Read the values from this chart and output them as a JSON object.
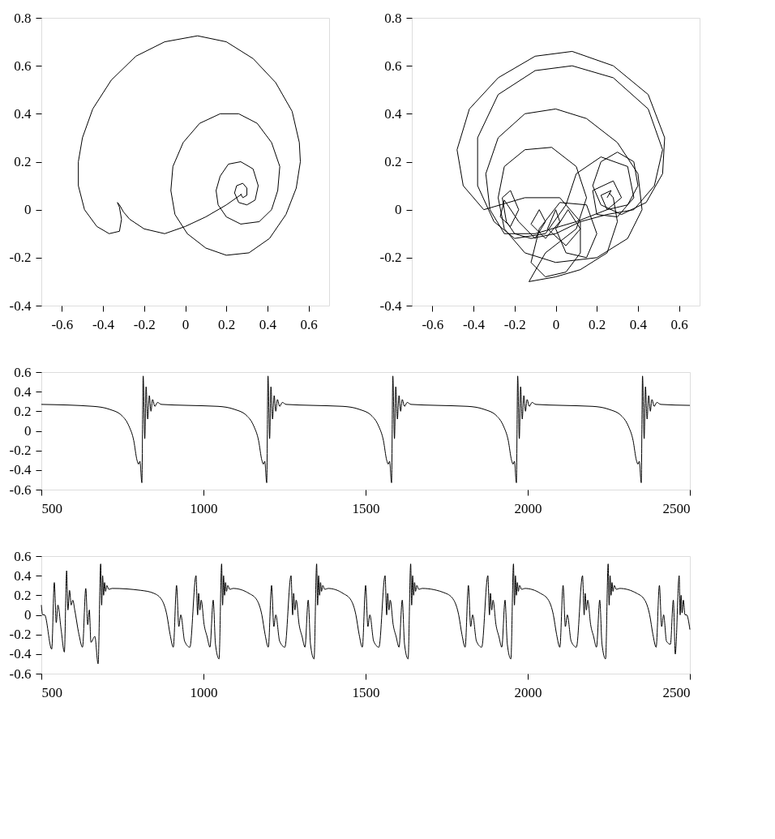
{
  "chart_data": [
    {
      "type": "line",
      "xlim": [
        -0.7,
        0.7
      ],
      "ylim": [
        -0.4,
        0.8
      ],
      "xticks": [
        -0.6,
        -0.4,
        -0.2,
        0,
        0.2,
        0.4,
        0.6
      ],
      "yticks": [
        -0.4,
        -0.2,
        0,
        0.2,
        0.4,
        0.6,
        0.8
      ],
      "series": [
        {
          "color": "#000000",
          "x": [
            0.275,
            0.2,
            0.1,
            0.0,
            -0.1,
            -0.2,
            -0.27,
            -0.3,
            -0.32,
            -0.33,
            -0.32,
            -0.31,
            -0.32,
            -0.37,
            -0.43,
            -0.49,
            -0.52,
            -0.52,
            -0.5,
            -0.45,
            -0.36,
            -0.24,
            -0.1,
            0.06,
            0.2,
            0.33,
            0.44,
            0.52,
            0.555,
            0.56,
            0.54,
            0.49,
            0.41,
            0.31,
            0.2,
            0.1,
            0.01,
            -0.05,
            -0.07,
            -0.06,
            -0.01,
            0.07,
            0.17,
            0.26,
            0.35,
            0.42,
            0.46,
            0.45,
            0.42,
            0.36,
            0.27,
            0.2,
            0.16,
            0.15,
            0.17,
            0.21,
            0.27,
            0.33,
            0.355,
            0.34,
            0.3,
            0.26,
            0.24,
            0.25,
            0.28,
            0.3,
            0.3,
            0.28,
            0.27
          ],
          "values": [
            0.065,
            0.02,
            -0.03,
            -0.07,
            -0.1,
            -0.08,
            -0.04,
            -0.01,
            0.02,
            0.03,
            0.01,
            -0.04,
            -0.09,
            -0.1,
            -0.07,
            0.0,
            0.1,
            0.2,
            0.3,
            0.42,
            0.54,
            0.64,
            0.7,
            0.725,
            0.7,
            0.63,
            0.53,
            0.41,
            0.28,
            0.2,
            0.09,
            -0.02,
            -0.12,
            -0.18,
            -0.19,
            -0.16,
            -0.1,
            -0.02,
            0.08,
            0.18,
            0.28,
            0.36,
            0.4,
            0.4,
            0.36,
            0.28,
            0.18,
            0.08,
            0.0,
            -0.05,
            -0.06,
            -0.03,
            0.02,
            0.08,
            0.14,
            0.19,
            0.2,
            0.17,
            0.1,
            0.04,
            0.02,
            0.03,
            0.07,
            0.1,
            0.11,
            0.09,
            0.06,
            0.05,
            0.065
          ]
        }
      ]
    },
    {
      "type": "line",
      "xlim": [
        -0.7,
        0.7
      ],
      "ylim": [
        -0.4,
        0.8
      ],
      "xticks": [
        -0.6,
        -0.4,
        -0.2,
        0,
        0.2,
        0.4,
        0.6
      ],
      "yticks": [
        -0.4,
        -0.2,
        0,
        0.2,
        0.4,
        0.6,
        0.8
      ],
      "series": [
        {
          "color": "#000000",
          "x": [
            0.25,
            0.27,
            0.22,
            0.25,
            0.32,
            0.28,
            0.18,
            0.2,
            0.3,
            0.38,
            0.35,
            0.22,
            0.1,
            0.05,
            -0.05,
            -0.2,
            -0.3,
            -0.38,
            -0.38,
            -0.28,
            -0.1,
            0.08,
            0.28,
            0.45,
            0.52,
            0.48,
            0.38,
            0.25,
            0.12,
            0.0,
            -0.12,
            -0.2,
            -0.24,
            -0.26,
            -0.22,
            -0.18,
            -0.22,
            -0.27,
            -0.25,
            -0.18,
            -0.1,
            -0.05,
            -0.08,
            -0.12,
            -0.05,
            0.02,
            0.0,
            -0.04,
            0.05,
            0.12,
            0.06,
            0.0,
            0.05,
            0.15,
            0.2,
            0.15,
            0.02,
            -0.08,
            -0.12,
            -0.05,
            0.05,
            0.12,
            0.12,
            0.02,
            -0.15,
            -0.35,
            -0.45,
            -0.48,
            -0.42,
            -0.28,
            -0.1,
            0.08,
            0.28,
            0.45,
            0.53,
            0.52,
            0.44,
            0.32,
            0.22,
            0.18,
            0.22,
            0.3,
            0.38,
            0.4,
            0.35,
            0.25,
            0.1,
            -0.1,
            -0.25,
            -0.32,
            -0.34,
            -0.28,
            -0.15,
            0.0,
            0.15,
            0.3,
            0.4,
            0.42,
            0.35,
            0.2,
            0.0,
            -0.15,
            -0.25,
            -0.28,
            -0.25,
            -0.15,
            -0.02,
            0.1,
            0.15,
            0.1,
            -0.05,
            -0.13,
            0.0,
            0.12,
            0.25,
            0.3,
            0.28,
            0.26
          ],
          "values": [
            0.05,
            0.08,
            0.06,
            0.0,
            0.05,
            0.12,
            0.08,
            -0.02,
            -0.03,
            0.05,
            0.18,
            0.22,
            0.15,
            0.02,
            -0.1,
            -0.12,
            -0.05,
            0.1,
            0.3,
            0.48,
            0.58,
            0.6,
            0.55,
            0.42,
            0.25,
            0.1,
            0.0,
            -0.02,
            -0.05,
            -0.1,
            -0.12,
            -0.1,
            -0.05,
            0.05,
            0.08,
            0.0,
            -0.07,
            -0.03,
            0.04,
            -0.05,
            -0.12,
            -0.05,
            0.0,
            -0.06,
            -0.12,
            -0.05,
            0.0,
            -0.08,
            -0.15,
            -0.08,
            0.0,
            -0.08,
            -0.18,
            -0.2,
            -0.1,
            0.02,
            0.03,
            -0.08,
            -0.22,
            -0.28,
            -0.26,
            -0.18,
            -0.05,
            0.05,
            0.05,
            0.0,
            0.1,
            0.25,
            0.42,
            0.55,
            0.64,
            0.66,
            0.6,
            0.48,
            0.3,
            0.15,
            0.03,
            -0.02,
            0.02,
            0.1,
            0.2,
            0.24,
            0.2,
            0.1,
            0.02,
            0.0,
            -0.05,
            -0.1,
            -0.1,
            0.0,
            0.15,
            0.3,
            0.4,
            0.42,
            0.38,
            0.28,
            0.15,
            0.0,
            -0.12,
            -0.2,
            -0.22,
            -0.18,
            -0.08,
            0.05,
            0.18,
            0.25,
            0.26,
            0.18,
            0.05,
            -0.08,
            -0.18,
            -0.3,
            -0.28,
            -0.25,
            -0.18,
            -0.05,
            0.05,
            0.07
          ]
        }
      ]
    },
    {
      "type": "line",
      "xlim": [
        500,
        2500
      ],
      "ylim": [
        -0.6,
        0.6
      ],
      "xticks": [
        500,
        1000,
        1500,
        2000,
        2500
      ],
      "yticks": [
        -0.6,
        -0.4,
        -0.2,
        0,
        0.2,
        0.4,
        0.6
      ],
      "series": [
        {
          "color": "#000000",
          "x": [
            500,
            660,
            710,
            750,
            770,
            785,
            795,
            800,
            804,
            810,
            814,
            819,
            823,
            828,
            833,
            838,
            843,
            850,
            858,
            870,
            950,
            1045,
            1095,
            1135,
            1155,
            1170,
            1180,
            1185,
            1189,
            1195,
            1199,
            1204,
            1208,
            1213,
            1218,
            1223,
            1228,
            1235,
            1243,
            1255,
            1335,
            1430,
            1480,
            1520,
            1540,
            1555,
            1565,
            1570,
            1574,
            1580,
            1584,
            1589,
            1593,
            1598,
            1603,
            1608,
            1613,
            1620,
            1628,
            1640,
            1720,
            1815,
            1865,
            1905,
            1925,
            1940,
            1950,
            1955,
            1959,
            1965,
            1969,
            1974,
            1978,
            1983,
            1988,
            1993,
            1998,
            2005,
            2013,
            2025,
            2105,
            2200,
            2250,
            2290,
            2310,
            2325,
            2335,
            2340,
            2344,
            2350,
            2354,
            2359,
            2363,
            2368,
            2373,
            2378,
            2383,
            2390,
            2398,
            2410,
            2500
          ],
          "values": [
            0.27,
            0.25,
            0.22,
            0.15,
            0.05,
            -0.1,
            -0.3,
            -0.34,
            -0.31,
            -0.53,
            0.56,
            -0.08,
            0.45,
            0.12,
            0.36,
            0.2,
            0.32,
            0.25,
            0.29,
            0.27,
            0.26,
            0.25,
            0.22,
            0.15,
            0.05,
            -0.1,
            -0.3,
            -0.34,
            -0.31,
            -0.53,
            0.56,
            -0.08,
            0.45,
            0.12,
            0.36,
            0.2,
            0.32,
            0.25,
            0.29,
            0.27,
            0.26,
            0.25,
            0.22,
            0.15,
            0.05,
            -0.1,
            -0.3,
            -0.34,
            -0.31,
            -0.53,
            0.56,
            -0.08,
            0.45,
            0.12,
            0.36,
            0.2,
            0.32,
            0.25,
            0.29,
            0.27,
            0.26,
            0.25,
            0.22,
            0.15,
            0.05,
            -0.1,
            -0.3,
            -0.34,
            -0.31,
            -0.53,
            0.56,
            -0.08,
            0.45,
            0.12,
            0.36,
            0.2,
            0.32,
            0.25,
            0.29,
            0.27,
            0.26,
            0.25,
            0.22,
            0.15,
            0.05,
            -0.1,
            -0.3,
            -0.34,
            -0.31,
            -0.53,
            0.56,
            -0.08,
            0.45,
            0.12,
            0.36,
            0.2,
            0.32,
            0.25,
            0.29,
            0.27,
            0.26
          ]
        }
      ]
    },
    {
      "type": "line",
      "xlim": [
        500,
        2500
      ],
      "ylim": [
        -0.6,
        0.6
      ],
      "xticks": [
        500,
        1000,
        1500,
        2000,
        2500
      ],
      "yticks": [
        -0.6,
        -0.4,
        -0.2,
        0,
        0.2,
        0.4,
        0.6
      ],
      "series": [
        {
          "color": "#000000",
          "x": [
            500,
            504,
            510,
            532,
            540,
            546,
            551,
            561,
            571,
            578,
            582,
            587,
            592,
            597,
            603,
            616,
            627,
            637,
            643,
            648,
            653,
            665,
            675,
            683,
            686,
            689,
            692,
            695,
            698,
            702,
            708,
            718,
            807,
            847,
            872,
            887,
            897,
            907,
            917,
            924,
            930,
            942,
            958,
            977,
            982,
            985,
            989,
            993,
            1002,
            1011,
            1020,
            1030,
            1037,
            1048,
            1056,
            1059,
            1062,
            1065,
            1068,
            1071,
            1075,
            1081,
            1091,
            1140,
            1165,
            1180,
            1190,
            1200,
            1210,
            1217,
            1223,
            1235,
            1251,
            1270,
            1275,
            1278,
            1282,
            1286,
            1295,
            1304,
            1313,
            1323,
            1330,
            1341,
            1349,
            1352,
            1355,
            1358,
            1361,
            1364,
            1368,
            1374,
            1384,
            1430,
            1455,
            1470,
            1480,
            1490,
            1500,
            1507,
            1513,
            1525,
            1541,
            1560,
            1565,
            1568,
            1572,
            1576,
            1585,
            1594,
            1603,
            1613,
            1620,
            1631,
            1639,
            1642,
            1645,
            1648,
            1651,
            1654,
            1658,
            1664,
            1674,
            1747,
            1772,
            1787,
            1797,
            1807,
            1817,
            1824,
            1830,
            1842,
            1858,
            1877,
            1882,
            1885,
            1889,
            1893,
            1902,
            1911,
            1920,
            1930,
            1937,
            1948,
            1956,
            1959,
            1962,
            1965,
            1968,
            1971,
            1975,
            1981,
            1991,
            2039,
            2064,
            2079,
            2089,
            2099,
            2109,
            2116,
            2122,
            2134,
            2150,
            2169,
            2174,
            2177,
            2181,
            2185,
            2194,
            2203,
            2212,
            2222,
            2229,
            2240,
            2248,
            2251,
            2254,
            2257,
            2260,
            2263,
            2267,
            2273,
            2283,
            2336,
            2361,
            2376,
            2386,
            2396,
            2406,
            2413,
            2419,
            2428,
            2440,
            2449,
            2455,
            2467,
            2470,
            2473,
            2476,
            2480,
            2485,
            2490,
            2500
          ],
          "values": [
            0.1,
            0.0,
            0.0,
            -0.35,
            0.33,
            -0.08,
            0.1,
            -0.15,
            -0.38,
            0.45,
            0.05,
            0.25,
            0.1,
            0.15,
            0.05,
            -0.2,
            -0.33,
            0.27,
            -0.1,
            0.05,
            -0.28,
            -0.22,
            -0.5,
            0.52,
            0.1,
            0.4,
            0.2,
            0.33,
            0.24,
            0.3,
            0.26,
            0.27,
            0.25,
            0.22,
            0.15,
            0.0,
            -0.2,
            -0.33,
            0.3,
            -0.12,
            0.0,
            -0.27,
            -0.33,
            0.4,
            0.0,
            0.22,
            0.05,
            0.15,
            -0.1,
            -0.22,
            -0.33,
            0.15,
            -0.3,
            -0.45,
            0.52,
            0.1,
            0.4,
            0.2,
            0.33,
            0.24,
            0.3,
            0.26,
            0.27,
            0.22,
            0.15,
            0.0,
            -0.2,
            -0.33,
            0.3,
            -0.12,
            0.0,
            -0.27,
            -0.33,
            0.4,
            0.0,
            0.22,
            0.05,
            0.15,
            -0.1,
            -0.22,
            -0.33,
            0.15,
            -0.3,
            -0.45,
            0.52,
            0.1,
            0.4,
            0.2,
            0.33,
            0.24,
            0.3,
            0.26,
            0.27,
            0.22,
            0.15,
            0.0,
            -0.2,
            -0.33,
            0.3,
            -0.12,
            0.0,
            -0.27,
            -0.33,
            0.4,
            0.0,
            0.22,
            0.05,
            0.15,
            -0.1,
            -0.22,
            -0.33,
            0.15,
            -0.3,
            -0.45,
            0.52,
            0.1,
            0.4,
            0.2,
            0.33,
            0.24,
            0.3,
            0.26,
            0.27,
            0.22,
            0.15,
            0.0,
            -0.2,
            -0.33,
            0.3,
            -0.12,
            0.0,
            -0.27,
            -0.33,
            0.4,
            0.0,
            0.22,
            0.05,
            0.15,
            -0.1,
            -0.22,
            -0.33,
            0.15,
            -0.3,
            -0.45,
            0.52,
            0.1,
            0.4,
            0.2,
            0.33,
            0.24,
            0.3,
            0.26,
            0.27,
            0.22,
            0.15,
            0.0,
            -0.2,
            -0.33,
            0.3,
            -0.12,
            0.0,
            -0.27,
            -0.33,
            0.4,
            0.0,
            0.22,
            0.05,
            0.15,
            -0.1,
            -0.22,
            -0.33,
            0.15,
            -0.3,
            -0.45,
            0.52,
            0.1,
            0.4,
            0.2,
            0.33,
            0.24,
            0.3,
            0.26,
            0.27,
            0.22,
            0.15,
            0.0,
            -0.2,
            -0.33,
            0.3,
            -0.12,
            0.0,
            -0.27,
            -0.3,
            0.15,
            -0.4,
            0.4,
            0.0,
            0.2,
            0.02,
            0.15,
            0.0,
            0.0,
            -0.15
          ]
        }
      ]
    }
  ]
}
